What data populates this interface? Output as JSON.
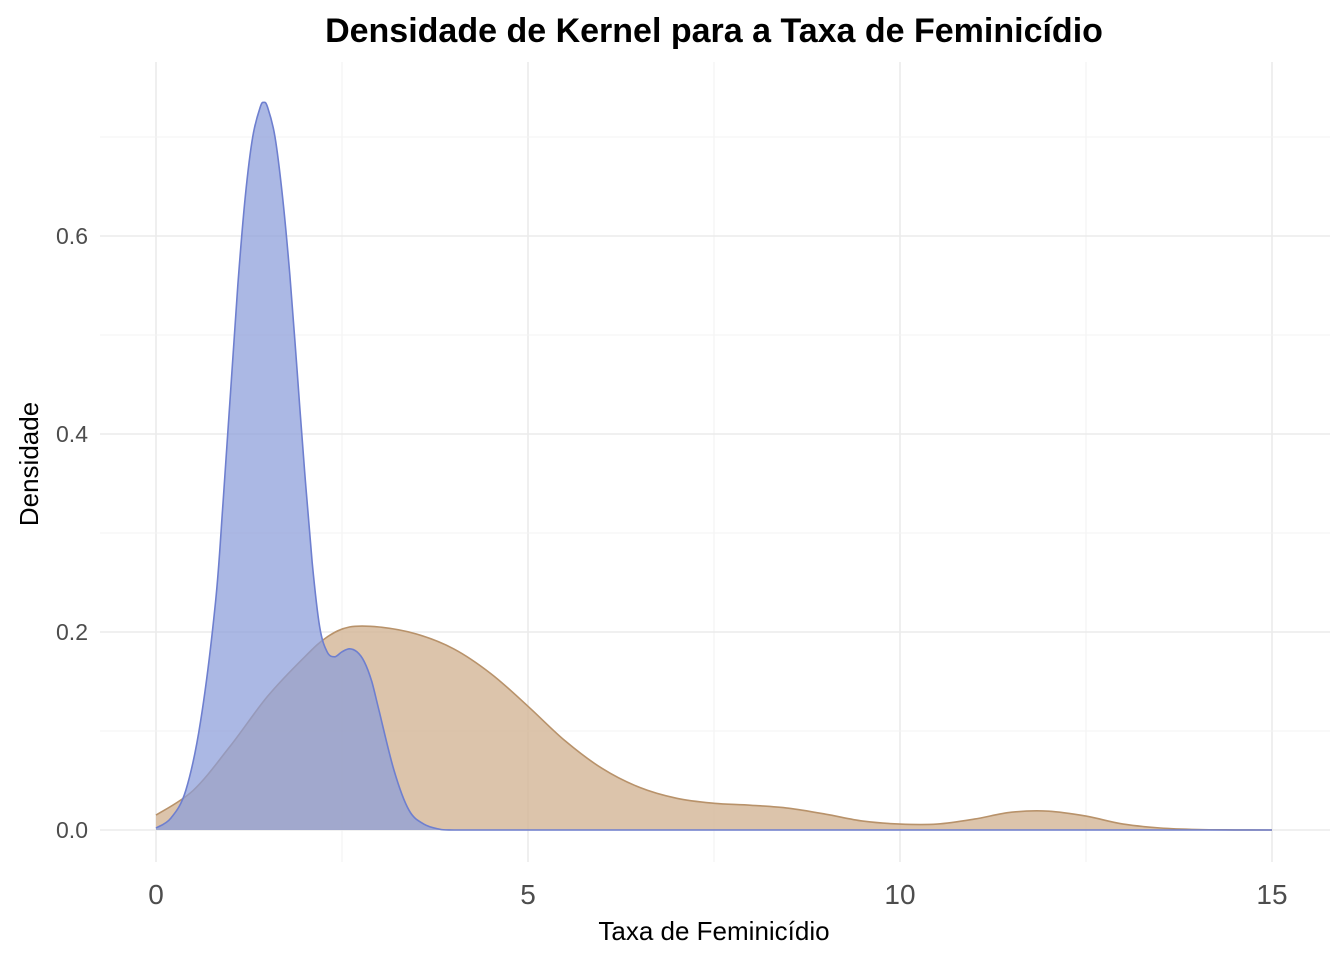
{
  "chart_data": {
    "type": "area",
    "title": "Densidade de Kernel para a Taxa de Feminicídio",
    "xlabel": "Taxa de Feminicídio",
    "ylabel": "Densidade",
    "xlim": [
      0,
      15
    ],
    "ylim": [
      0,
      0.74
    ],
    "x_ticks": [
      0,
      5,
      10,
      15
    ],
    "x_tick_labels": [
      "0",
      "5",
      "10",
      "15"
    ],
    "y_ticks": [
      0.0,
      0.2,
      0.4,
      0.6
    ],
    "y_tick_labels": [
      "0.0",
      "0.2",
      "0.4",
      "0.6"
    ],
    "grid": true,
    "series": [
      {
        "fill": "#d2b494",
        "stroke": "#b8926a",
        "opacity": 0.78,
        "x": [
          0,
          0.5,
          1,
          1.5,
          2,
          2.3,
          2.6,
          3,
          3.5,
          4,
          4.5,
          5,
          5.5,
          6,
          6.5,
          7,
          7.5,
          8,
          8.5,
          9,
          9.5,
          10,
          10.5,
          11,
          11.5,
          12,
          12.5,
          13,
          13.5,
          14,
          14.5,
          15
        ],
        "values": [
          0.015,
          0.04,
          0.085,
          0.135,
          0.175,
          0.195,
          0.205,
          0.205,
          0.198,
          0.183,
          0.158,
          0.125,
          0.09,
          0.062,
          0.043,
          0.032,
          0.027,
          0.025,
          0.022,
          0.016,
          0.009,
          0.006,
          0.006,
          0.011,
          0.018,
          0.019,
          0.014,
          0.006,
          0.002,
          0.0005,
          0.0001,
          0
        ]
      },
      {
        "fill": "#8b9dda",
        "stroke": "#6e7fcf",
        "opacity": 0.72,
        "x": [
          0,
          0.2,
          0.4,
          0.6,
          0.8,
          0.9,
          1.0,
          1.1,
          1.2,
          1.3,
          1.4,
          1.45,
          1.5,
          1.6,
          1.7,
          1.8,
          1.9,
          2.0,
          2.1,
          2.2,
          2.3,
          2.4,
          2.5,
          2.6,
          2.7,
          2.8,
          2.9,
          3.0,
          3.2,
          3.4,
          3.6,
          3.8,
          4.0,
          5,
          7,
          10,
          15
        ],
        "values": [
          0.002,
          0.012,
          0.04,
          0.11,
          0.23,
          0.33,
          0.44,
          0.55,
          0.64,
          0.7,
          0.73,
          0.735,
          0.73,
          0.7,
          0.64,
          0.56,
          0.46,
          0.36,
          0.27,
          0.205,
          0.18,
          0.175,
          0.18,
          0.183,
          0.18,
          0.17,
          0.15,
          0.12,
          0.06,
          0.02,
          0.006,
          0.001,
          0,
          0,
          0,
          0,
          0
        ]
      }
    ]
  }
}
